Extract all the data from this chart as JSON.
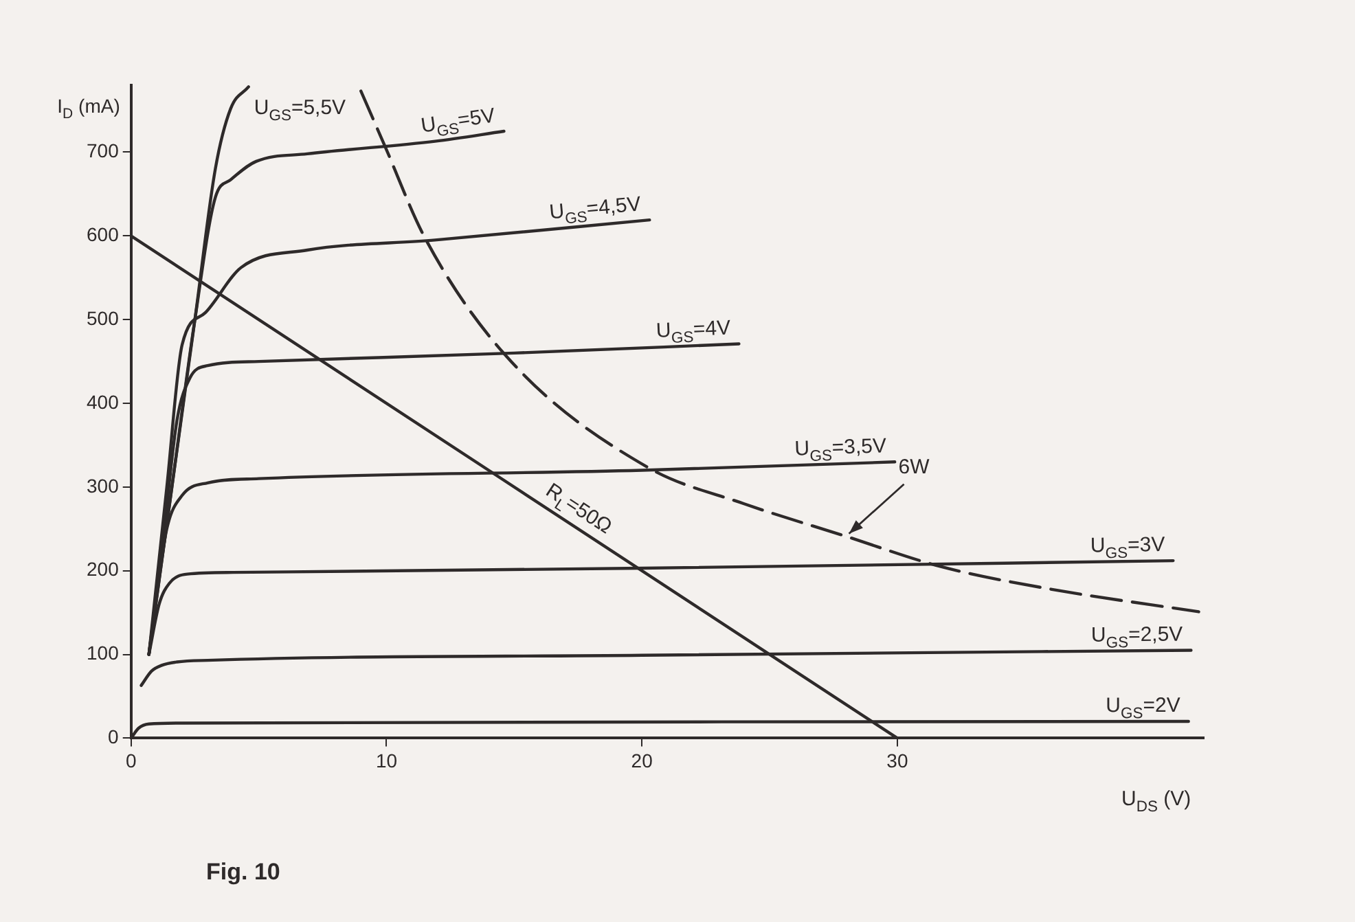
{
  "chart_data": {
    "type": "line",
    "xlabel": "U$_{DS}$ (V)",
    "ylabel": "I$_{D}$ (mA)",
    "xlim": [
      0,
      42
    ],
    "ylim": [
      0,
      780
    ],
    "xticks": [
      0,
      10,
      20,
      30
    ],
    "yticks": [
      0,
      100,
      200,
      300,
      400,
      500,
      600,
      700
    ],
    "grid": false,
    "legend": false,
    "marker": "none",
    "series": [
      {
        "name": "U$_{GS}$=5,5V",
        "color": "#2e2a2a",
        "x": [
          0.7,
          1.6,
          2.5,
          3.3,
          3.9,
          4.6
        ],
        "values": [
          100,
          300,
          500,
          680,
          752,
          778
        ]
      },
      {
        "name": "U$_{GS}$=5V",
        "color": "#2e2a2a",
        "x": [
          0.7,
          1.6,
          2.5,
          3.3,
          3.9,
          4.9,
          6.9,
          11.9,
          14.6
        ],
        "values": [
          100,
          300,
          500,
          646,
          667,
          689,
          698,
          713,
          725
        ]
      },
      {
        "name": "U$_{GS}$=4,5V",
        "color": "#2e2a2a",
        "x": [
          0.7,
          1.4,
          2.0,
          2.9,
          4.3,
          6.9,
          11.9,
          20.3
        ],
        "values": [
          100,
          300,
          470,
          508,
          562,
          583,
          595,
          619
        ]
      },
      {
        "name": "U$_{GS}$=4V",
        "color": "#2e2a2a",
        "x": [
          0.7,
          1.3,
          1.8,
          2.3,
          3,
          5,
          15,
          23.8
        ],
        "values": [
          100,
          250,
          380,
          430,
          445,
          450,
          460,
          471
        ]
      },
      {
        "name": "U$_{GS}$=3,5V",
        "color": "#2e2a2a",
        "x": [
          0.7,
          1.0,
          1.4,
          2,
          3,
          5,
          20,
          29.9
        ],
        "values": [
          100,
          170,
          250,
          290,
          305,
          310,
          320,
          330
        ]
      },
      {
        "name": "U$_{GS}$=3V",
        "color": "#2e2a2a",
        "x": [
          0.7,
          1.1,
          1.5,
          2.2,
          4,
          20,
          40.8
        ],
        "values": [
          100,
          160,
          185,
          196,
          198,
          203,
          212
        ]
      },
      {
        "name": "U$_{GS}$=2,5V",
        "color": "#2e2a2a",
        "x": [
          0.4,
          0.8,
          1.2,
          1.8,
          3,
          20,
          41.5
        ],
        "values": [
          63,
          80,
          87,
          91,
          93,
          99,
          105
        ]
      },
      {
        "name": "U$_{GS}$=2V",
        "color": "#2e2a2a",
        "x": [
          0,
          0.3,
          0.7,
          2,
          41.4
        ],
        "values": [
          0,
          12,
          17,
          18,
          20
        ]
      },
      {
        "name": "R$_{L}$=50Ω",
        "color": "#2e2a2a",
        "x": [
          0,
          30
        ],
        "values": [
          600,
          0
        ]
      },
      {
        "color": "#2e2a2a",
        "line_style": "dashed",
        "x": [
          9.0,
          9.9,
          11.5,
          14.7,
          20.2,
          24,
          28,
          31.7,
          36,
          41.8
        ],
        "values": [
          773,
          710,
          598,
          456,
          324,
          280,
          241,
          205,
          178,
          151
        ]
      }
    ],
    "annotations": [
      {
        "text": "6W",
        "x": 28,
        "y": 241
      },
      "Fig. 10"
    ]
  }
}
